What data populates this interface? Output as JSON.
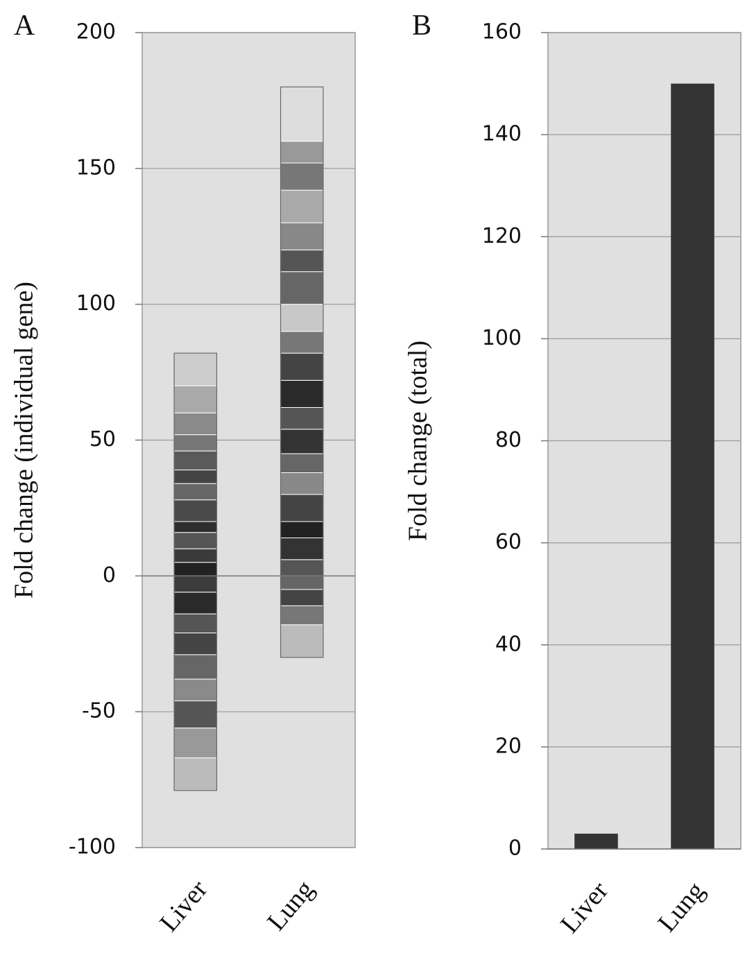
{
  "chart_data": [
    {
      "type": "stacked_bar",
      "panel": "A",
      "y_label": "Fold change (individual gene)",
      "categories": [
        "Liver",
        "Lung"
      ],
      "segments": [
        {
          "values": [
            5,
            5,
            6,
            4,
            8,
            6,
            5,
            7,
            6,
            8,
            10,
            12,
            -6,
            -8,
            -7,
            -8,
            -9,
            -8,
            -10,
            -11,
            -12
          ],
          "colors": [
            "#222222",
            "#3a3a3a",
            "#555555",
            "#2e2e2e",
            "#4a4a4a",
            "#666666",
            "#444444",
            "#5a5a5a",
            "#777777",
            "#8a8a8a",
            "#aaaaaa",
            "#cccccc",
            "#3c3c3c",
            "#2a2a2a",
            "#555555",
            "#444444",
            "#666666",
            "#8a8a8a",
            "#555555",
            "#999999",
            "#bbbbbb"
          ]
        },
        {
          "values": [
            6,
            8,
            6,
            10,
            8,
            7,
            9,
            8,
            10,
            10,
            8,
            10,
            12,
            8,
            10,
            12,
            10,
            8,
            20,
            -5,
            -6,
            -7,
            -12
          ],
          "colors": [
            "#555555",
            "#333333",
            "#222222",
            "#444444",
            "#888888",
            "#666666",
            "#333333",
            "#555555",
            "#2a2a2a",
            "#444444",
            "#777777",
            "#c8c8c8",
            "#666666",
            "#555555",
            "#888888",
            "#aaaaaa",
            "#777777",
            "#999999",
            "#dddddd",
            "#666666",
            "#444444",
            "#777777",
            "#bbbbbb"
          ]
        }
      ],
      "ylim": [
        -100,
        200
      ],
      "yticks": [
        -100,
        -50,
        0,
        50,
        100,
        150,
        200
      ],
      "grid": true
    },
    {
      "type": "bar",
      "panel": "B",
      "y_label": "Fold change  (total)",
      "categories": [
        "Liver",
        "Lung"
      ],
      "values": [
        3,
        150
      ],
      "color": "#333333",
      "ylim": [
        0,
        160
      ],
      "yticks": [
        0,
        20,
        40,
        60,
        80,
        100,
        120,
        140,
        160
      ],
      "grid": true
    }
  ]
}
